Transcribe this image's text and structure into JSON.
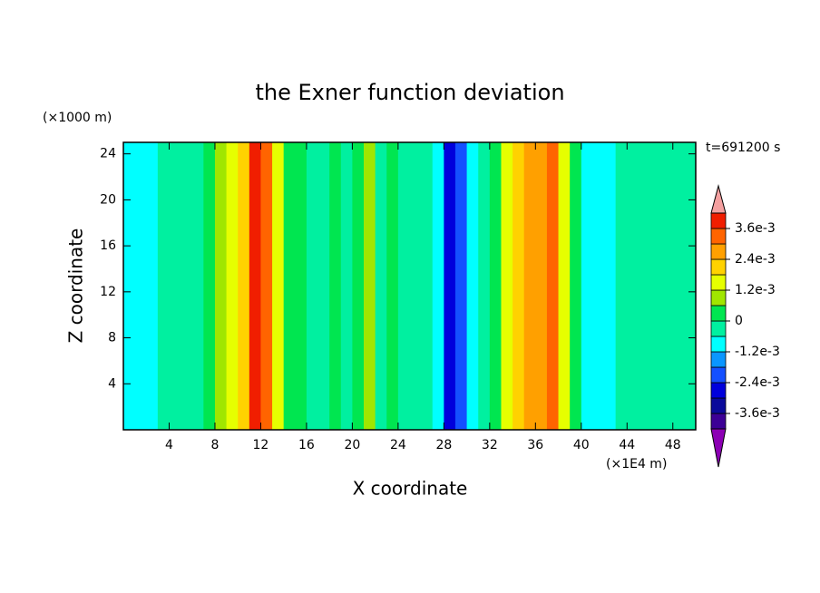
{
  "chart_data": {
    "type": "contour",
    "title": "the Exner function deviation",
    "xlabel": "X coordinate",
    "ylabel": "Z coordinate",
    "x_unit": "(×1E4 m)",
    "y_unit": "(×1000 m)",
    "annotation": "t=691200 s",
    "xlim": [
      0,
      50
    ],
    "ylim": [
      0,
      25
    ],
    "xticks": [
      4,
      8,
      12,
      16,
      20,
      24,
      28,
      32,
      36,
      40,
      44,
      48
    ],
    "yticks": [
      4,
      8,
      12,
      16,
      20,
      24
    ],
    "x": [
      0.5,
      1.5,
      2.5,
      3.5,
      4.5,
      5.5,
      6.5,
      7.5,
      8.5,
      9.5,
      10.5,
      11.5,
      12.5,
      13.5,
      14.5,
      15.5,
      16.5,
      17.5,
      18.5,
      19.5,
      20.5,
      21.5,
      22.5,
      23.5,
      24.5,
      25.5,
      26.5,
      27.5,
      28.5,
      29.5,
      30.5,
      31.5,
      32.5,
      33.5,
      34.5,
      35.5,
      36.5,
      37.5,
      38.5,
      39.5,
      40.5,
      41.5,
      42.5,
      43.5,
      44.5,
      45.5,
      46.5,
      47.5,
      48.5,
      49.5
    ],
    "values": [
      -0.0009,
      -0.0009,
      -0.0009,
      -0.0003,
      -0.0003,
      -0.0003,
      -0.0003,
      0.0003,
      0.0009,
      0.0015,
      0.0021,
      0.0039,
      0.0033,
      0.0015,
      0.0003,
      0.0003,
      -0.0003,
      -0.0003,
      0.0003,
      -0.0003,
      0.0003,
      0.0009,
      -0.0003,
      0.0003,
      -0.0003,
      -0.0003,
      -0.0003,
      -0.0009,
      -0.0027,
      -0.0021,
      -0.0009,
      -0.0003,
      0.0003,
      0.0015,
      0.0021,
      0.0027,
      0.0027,
      0.0033,
      0.0015,
      0.0003,
      -0.0009,
      -0.0009,
      -0.0009,
      -0.0003,
      -0.0003,
      -0.0003,
      -0.0003,
      -0.0003,
      -0.0003,
      -0.0003
    ],
    "levels": [
      -0.0042,
      -0.0036,
      -0.003,
      -0.0024,
      -0.0018,
      -0.0012,
      -0.0006,
      0,
      0.0006,
      0.0012,
      0.0018,
      0.0024,
      0.003,
      0.0036,
      0.0042
    ],
    "colors": [
      "#3c0096",
      "#0a0a9b",
      "#0000dc",
      "#1450ff",
      "#0a96ff",
      "#00ffff",
      "#00f0a0",
      "#00e650",
      "#a0e600",
      "#e6ff00",
      "#ffd200",
      "#ffa000",
      "#ff6400",
      "#f01e00"
    ],
    "over_color": "#f4a0a0",
    "under_color": "#8c00b4",
    "colorbar_ticks": [
      {
        "value": 0.0036,
        "label": "3.6e-3"
      },
      {
        "value": 0.0024,
        "label": "2.4e-3"
      },
      {
        "value": 0.0012,
        "label": "1.2e-3"
      },
      0,
      {
        "value": -0.0012,
        "label": "-1.2e-3"
      },
      {
        "value": -0.0024,
        "label": "-2.4e-3"
      },
      {
        "value": -0.0036,
        "label": "-3.6e-3"
      }
    ]
  }
}
